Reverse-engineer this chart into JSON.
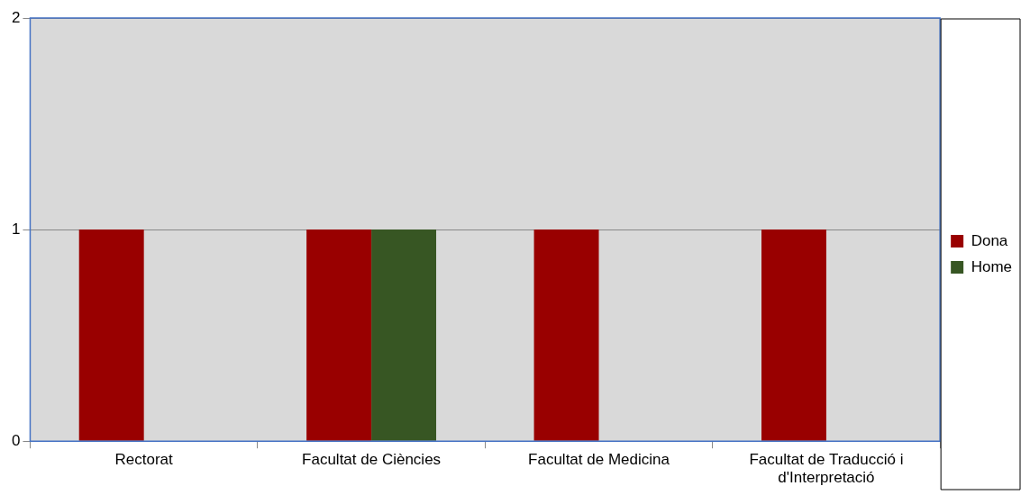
{
  "chart_data": {
    "type": "bar",
    "categories": [
      "Rectorat",
      "Facultat de Ciències",
      "Facultat de Medicina",
      "Facultat de Traducció i d'Interpretació"
    ],
    "series": [
      {
        "name": "Dona",
        "color": "#990000",
        "values": [
          1,
          1,
          1,
          1
        ]
      },
      {
        "name": "Home",
        "color": "#375623",
        "values": [
          0,
          1,
          0,
          0
        ]
      }
    ],
    "ylim": [
      0,
      2
    ],
    "yticks": [
      0,
      1,
      2
    ],
    "grid": "y",
    "legend": "right"
  }
}
